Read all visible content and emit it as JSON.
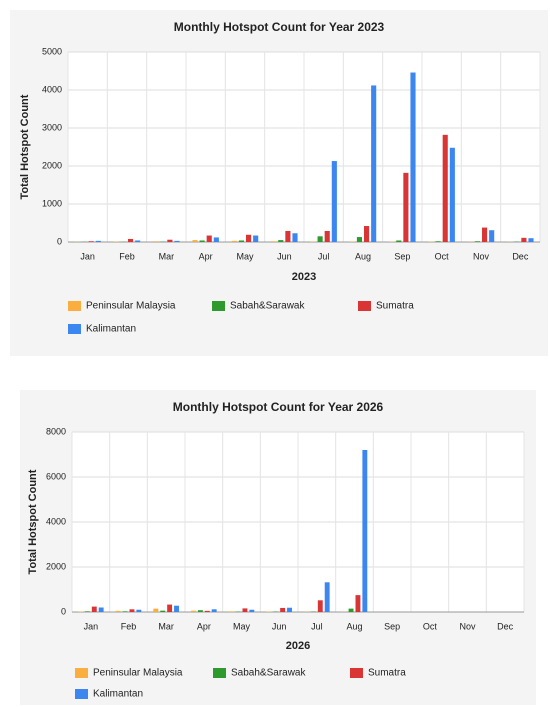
{
  "chart_data": [
    {
      "type": "bar",
      "title": "Monthly Hotspot Count for Year 2023",
      "x_label": "2023",
      "y_label": "Total Hotspot Count",
      "categories": [
        "Jan",
        "Feb",
        "Mar",
        "Apr",
        "May",
        "Jun",
        "Jul",
        "Aug",
        "Sep",
        "Oct",
        "Nov",
        "Dec"
      ],
      "ylim": [
        0,
        5000
      ],
      "yticks": [
        0,
        1000,
        2000,
        3000,
        4000,
        5000
      ],
      "grid": true,
      "series": [
        {
          "name": "Peninsular Malaysia",
          "color": "#f9ae3f",
          "values": [
            5,
            10,
            20,
            50,
            30,
            20,
            10,
            10,
            10,
            10,
            5,
            5
          ]
        },
        {
          "name": "Sabah&Sarawak",
          "color": "#2e9a2e",
          "values": [
            5,
            5,
            10,
            40,
            40,
            50,
            150,
            130,
            40,
            20,
            20,
            10
          ]
        },
        {
          "name": "Sumatra",
          "color": "#d93535",
          "values": [
            20,
            80,
            60,
            170,
            190,
            290,
            290,
            420,
            1820,
            2820,
            380,
            110
          ]
        },
        {
          "name": "Kalimantan",
          "color": "#3c86f0",
          "values": [
            30,
            40,
            30,
            120,
            170,
            230,
            2130,
            4120,
            4460,
            2480,
            310,
            100
          ]
        }
      ]
    },
    {
      "type": "bar",
      "title": "Monthly Hotspot Count for Year 2026",
      "x_label": "2026",
      "y_label": "Total Hotspot Count",
      "categories": [
        "Jan",
        "Feb",
        "Mar",
        "Apr",
        "May",
        "Jun",
        "Jul",
        "Aug",
        "Sep",
        "Oct",
        "Nov",
        "Dec"
      ],
      "ylim": [
        0,
        8000
      ],
      "yticks": [
        0,
        2000,
        4000,
        6000,
        8000
      ],
      "grid": true,
      "series": [
        {
          "name": "Peninsular Malaysia",
          "color": "#f9ae3f",
          "values": [
            20,
            50,
            150,
            60,
            30,
            20,
            10,
            10,
            null,
            null,
            null,
            null
          ]
        },
        {
          "name": "Sabah&Sarawak",
          "color": "#2e9a2e",
          "values": [
            30,
            30,
            60,
            80,
            20,
            20,
            20,
            150,
            null,
            null,
            null,
            null
          ]
        },
        {
          "name": "Sumatra",
          "color": "#d93535",
          "values": [
            240,
            120,
            330,
            50,
            160,
            180,
            520,
            750,
            null,
            null,
            null,
            null
          ]
        },
        {
          "name": "Kalimantan",
          "color": "#3c86f0",
          "values": [
            200,
            100,
            280,
            120,
            100,
            190,
            1320,
            7200,
            null,
            null,
            null,
            null
          ]
        }
      ]
    }
  ]
}
